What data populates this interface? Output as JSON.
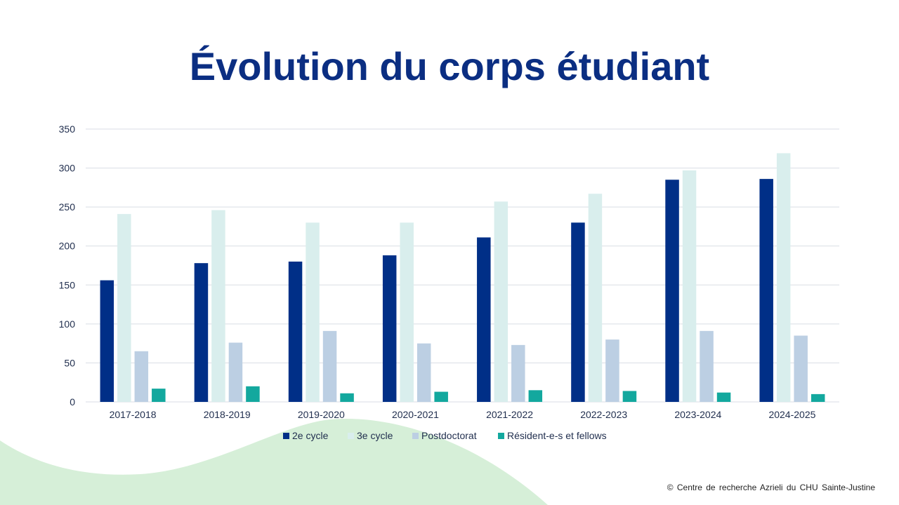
{
  "slide": {
    "title": "Évolution du corps étudiant",
    "copyright": "© Centre de recherche Azrieli du CHU Sainte-Justine"
  },
  "colors": {
    "title": "#0b2e82",
    "wave": "#d6efd8",
    "gridline": "#d9dde4",
    "axis_text": "#1f2d4d"
  },
  "chart_data": {
    "type": "bar",
    "categories": [
      "2017-2018",
      "2018-2019",
      "2019-2020",
      "2020-2021",
      "2021-2022",
      "2022-2023",
      "2023-2024",
      "2024-2025"
    ],
    "series": [
      {
        "name": "2e cycle",
        "color": "#002f87",
        "values": [
          156,
          178,
          180,
          188,
          211,
          230,
          285,
          286
        ]
      },
      {
        "name": "3e cycle",
        "color": "#d9eeed",
        "values": [
          241,
          246,
          230,
          230,
          257,
          267,
          297,
          319
        ]
      },
      {
        "name": "Postdoctorat",
        "color": "#bccfe3",
        "values": [
          65,
          76,
          91,
          75,
          73,
          80,
          91,
          85
        ]
      },
      {
        "name": "Résident-e-s et fellows",
        "color": "#13a89e",
        "values": [
          17,
          20,
          11,
          13,
          15,
          14,
          12,
          10
        ]
      }
    ],
    "yticks": [
      "0",
      "50",
      "100",
      "150",
      "200",
      "250",
      "300",
      "350"
    ],
    "ylim": [
      0,
      350
    ],
    "grid": true,
    "legend_position": "bottom"
  }
}
